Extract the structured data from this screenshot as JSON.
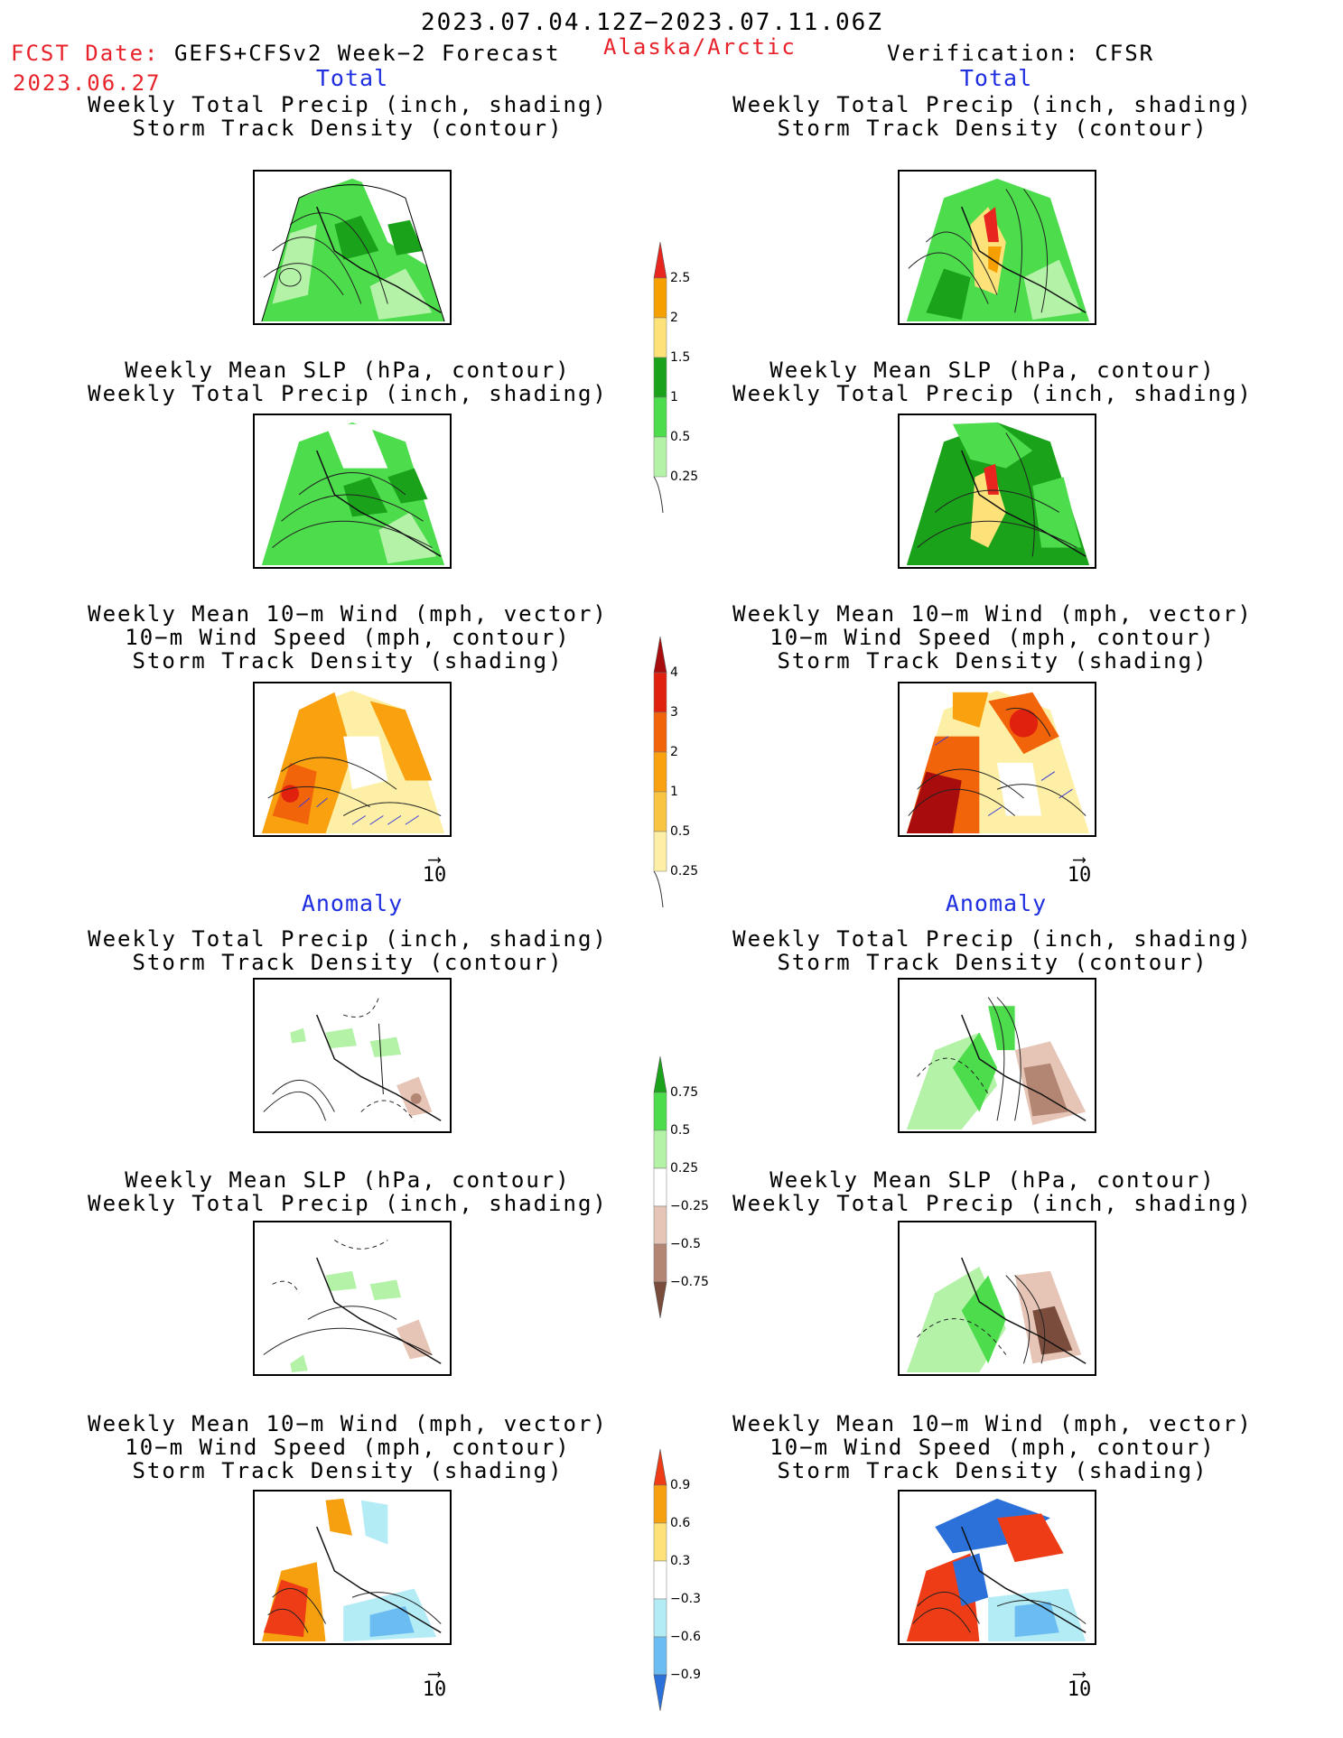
{
  "header": {
    "date_range": "2023.07.04.12Z−2023.07.11.06Z",
    "fcst_prefix": "FCST Date:",
    "fcst_model": "GEFS+CFSv2 Week−2 Forecast",
    "fcst_date": "2023.06.27",
    "region": "Alaska/Arctic",
    "verification": "Verification: CFSR"
  },
  "sections": {
    "total": "Total",
    "anomaly": "Anomaly"
  },
  "panels": {
    "p1_l1": "Weekly Total Precip (inch, shading)",
    "p1_l2": "Storm Track Density (contour)",
    "p2_l1": "Weekly Mean SLP (hPa, contour)",
    "p2_l2": "Weekly Total Precip (inch, shading)",
    "p3_l1": "Weekly Mean 10−m Wind (mph, vector)",
    "p3_l2": "10−m Wind Speed (mph, contour)",
    "p3_l3": "Storm Track Density (shading)"
  },
  "ref_vector": "10",
  "colorbars": {
    "precip_total": {
      "labels": [
        "2.5",
        "2",
        "1.5",
        "1",
        "0.5",
        "0.25"
      ],
      "colors": [
        "#e8251e",
        "#f5a000",
        "#fde27a",
        "#1aa31a",
        "#4cdc4c",
        "#b4f2a8"
      ]
    },
    "storm_total": {
      "labels": [
        "4",
        "3",
        "2",
        "1",
        "0.5",
        "0.25"
      ],
      "colors": [
        "#a80c0c",
        "#e0210e",
        "#f2640a",
        "#f9a10f",
        "#fac443",
        "#fdf0a6"
      ]
    },
    "precip_anom": {
      "labels": [
        "0.75",
        "0.5",
        "0.25",
        "−0.25",
        "−0.5",
        "−0.75"
      ],
      "colors": [
        "#1aa31a",
        "#4cdc4c",
        "#b4f2a8",
        "#ffffff",
        "#e6c5b7",
        "#b38573",
        "#7a4c3c"
      ]
    },
    "storm_anom": {
      "labels": [
        "0.9",
        "0.6",
        "0.3",
        "−0.3",
        "−0.6",
        "−0.9"
      ],
      "colors": [
        "#ee3d16",
        "#f7a00f",
        "#fde27a",
        "#ffffff",
        "#b4ecf6",
        "#6bbcf0",
        "#2b71d9"
      ]
    }
  }
}
